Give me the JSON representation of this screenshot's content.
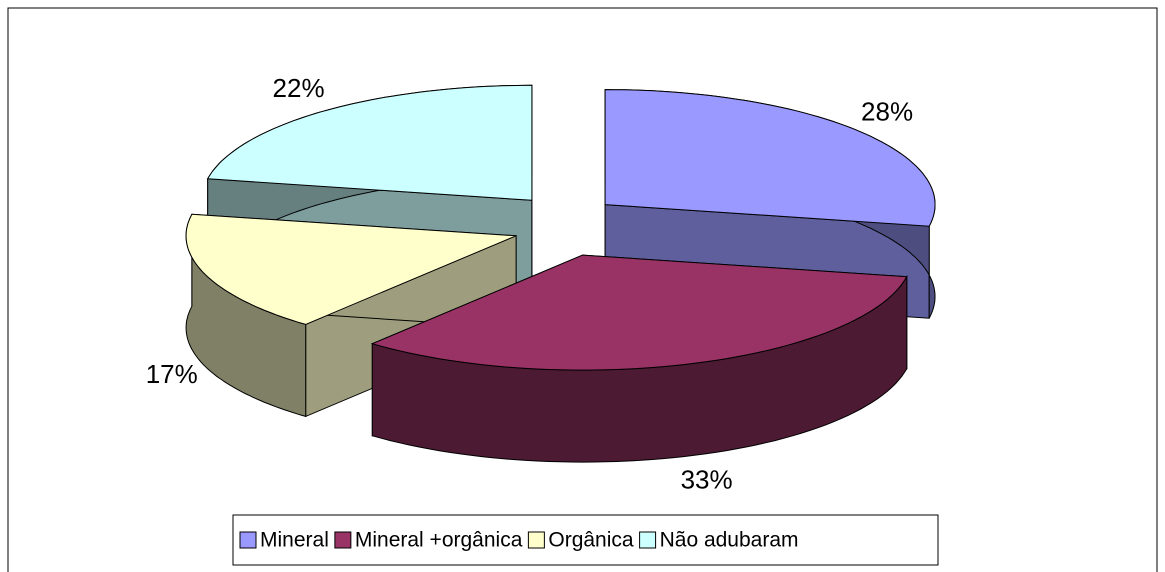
{
  "chart_data": {
    "type": "pie3d",
    "categories": [
      "Mineral",
      "Mineral +orgânica",
      "Orgânica",
      "Não adubaram"
    ],
    "values": [
      28,
      33,
      17,
      22
    ],
    "value_labels": [
      "28%",
      "33%",
      "17%",
      "22%"
    ],
    "colors": [
      "#9999ff",
      "#993366",
      "#ffffcc",
      "#ccffff"
    ],
    "legend": "bottom"
  }
}
